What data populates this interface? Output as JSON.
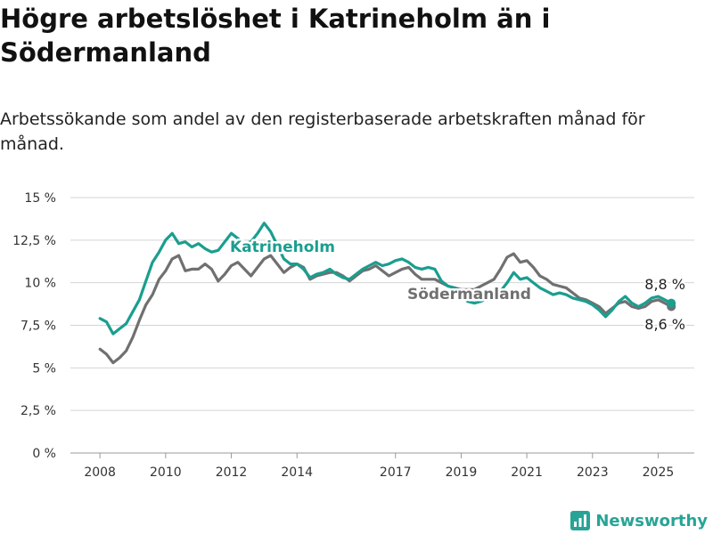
{
  "title": "Högre arbetslöshet i Katrineholm än i Södermanland",
  "subtitle": "Arbetssökande som andel av den registerbaserade arbetskraften månad för månad.",
  "brand": "Newsworthy",
  "colors": {
    "katrineholm": "#1a9e8f",
    "sodermanland": "#707070",
    "grid": "#d4d4d4",
    "brand": "#27a496"
  },
  "chart_data": {
    "type": "line",
    "y_ticks": [
      {
        "value": 0,
        "label": "0 %"
      },
      {
        "value": 2.5,
        "label": "2,5 %"
      },
      {
        "value": 5,
        "label": "5 %"
      },
      {
        "value": 7.5,
        "label": "7,5 %"
      },
      {
        "value": 10,
        "label": "10 %"
      },
      {
        "value": 12.5,
        "label": "12,5 %"
      },
      {
        "value": 15,
        "label": "15 %"
      }
    ],
    "x_ticks": [
      {
        "value": 2008,
        "label": "2008"
      },
      {
        "value": 2010,
        "label": "2010"
      },
      {
        "value": 2012,
        "label": "2012"
      },
      {
        "value": 2014,
        "label": "2014"
      },
      {
        "value": 2017,
        "label": "2017"
      },
      {
        "value": 2019,
        "label": "2019"
      },
      {
        "value": 2021,
        "label": "2021"
      },
      {
        "value": 2023,
        "label": "2023"
      },
      {
        "value": 2025,
        "label": "2025"
      }
    ],
    "ylim": [
      0,
      15
    ],
    "xlim": [
      2007.1,
      2026.1
    ],
    "grid": true,
    "series": [
      {
        "name": "Katrineholm",
        "end_label": "8,8 %",
        "points": [
          [
            2008.0,
            7.9
          ],
          [
            2008.2,
            7.7
          ],
          [
            2008.4,
            7.0
          ],
          [
            2008.6,
            7.3
          ],
          [
            2008.8,
            7.6
          ],
          [
            2009.0,
            8.3
          ],
          [
            2009.2,
            9.0
          ],
          [
            2009.4,
            10.1
          ],
          [
            2009.6,
            11.2
          ],
          [
            2009.8,
            11.8
          ],
          [
            2010.0,
            12.5
          ],
          [
            2010.2,
            12.9
          ],
          [
            2010.4,
            12.3
          ],
          [
            2010.6,
            12.4
          ],
          [
            2010.8,
            12.1
          ],
          [
            2011.0,
            12.3
          ],
          [
            2011.2,
            12.0
          ],
          [
            2011.4,
            11.8
          ],
          [
            2011.6,
            11.9
          ],
          [
            2011.8,
            12.4
          ],
          [
            2012.0,
            12.9
          ],
          [
            2012.2,
            12.6
          ],
          [
            2012.4,
            12.3
          ],
          [
            2012.6,
            12.4
          ],
          [
            2012.8,
            12.9
          ],
          [
            2013.0,
            13.5
          ],
          [
            2013.2,
            13.0
          ],
          [
            2013.4,
            12.2
          ],
          [
            2013.6,
            11.4
          ],
          [
            2013.8,
            11.1
          ],
          [
            2014.0,
            11.1
          ],
          [
            2014.2,
            10.8
          ],
          [
            2014.4,
            10.3
          ],
          [
            2014.6,
            10.5
          ],
          [
            2014.8,
            10.6
          ],
          [
            2015.0,
            10.8
          ],
          [
            2015.2,
            10.5
          ],
          [
            2015.4,
            10.3
          ],
          [
            2015.6,
            10.2
          ],
          [
            2015.8,
            10.5
          ],
          [
            2016.0,
            10.8
          ],
          [
            2016.2,
            11.0
          ],
          [
            2016.4,
            11.2
          ],
          [
            2016.6,
            11.0
          ],
          [
            2016.8,
            11.1
          ],
          [
            2017.0,
            11.3
          ],
          [
            2017.2,
            11.4
          ],
          [
            2017.4,
            11.2
          ],
          [
            2017.6,
            10.9
          ],
          [
            2017.8,
            10.8
          ],
          [
            2018.0,
            10.9
          ],
          [
            2018.2,
            10.8
          ],
          [
            2018.4,
            10.1
          ],
          [
            2018.6,
            9.8
          ],
          [
            2018.8,
            9.7
          ],
          [
            2019.0,
            9.3
          ],
          [
            2019.2,
            8.9
          ],
          [
            2019.4,
            8.8
          ],
          [
            2019.6,
            8.9
          ],
          [
            2019.8,
            9.1
          ],
          [
            2020.0,
            9.3
          ],
          [
            2020.2,
            9.5
          ],
          [
            2020.4,
            10.0
          ],
          [
            2020.6,
            10.6
          ],
          [
            2020.8,
            10.2
          ],
          [
            2021.0,
            10.3
          ],
          [
            2021.2,
            10.0
          ],
          [
            2021.4,
            9.7
          ],
          [
            2021.6,
            9.5
          ],
          [
            2021.8,
            9.3
          ],
          [
            2022.0,
            9.4
          ],
          [
            2022.2,
            9.3
          ],
          [
            2022.4,
            9.1
          ],
          [
            2022.6,
            9.0
          ],
          [
            2022.8,
            8.9
          ],
          [
            2023.0,
            8.7
          ],
          [
            2023.2,
            8.4
          ],
          [
            2023.4,
            8.0
          ],
          [
            2023.6,
            8.4
          ],
          [
            2023.8,
            8.9
          ],
          [
            2024.0,
            9.2
          ],
          [
            2024.2,
            8.8
          ],
          [
            2024.4,
            8.6
          ],
          [
            2024.6,
            8.8
          ],
          [
            2024.8,
            9.1
          ],
          [
            2025.0,
            9.2
          ],
          [
            2025.2,
            9.0
          ],
          [
            2025.4,
            8.8
          ]
        ]
      },
      {
        "name": "Södermanland",
        "end_label": "8,6 %",
        "points": [
          [
            2008.0,
            6.1
          ],
          [
            2008.2,
            5.8
          ],
          [
            2008.4,
            5.3
          ],
          [
            2008.6,
            5.6
          ],
          [
            2008.8,
            6.0
          ],
          [
            2009.0,
            6.8
          ],
          [
            2009.2,
            7.8
          ],
          [
            2009.4,
            8.7
          ],
          [
            2009.6,
            9.3
          ],
          [
            2009.8,
            10.2
          ],
          [
            2010.0,
            10.7
          ],
          [
            2010.2,
            11.4
          ],
          [
            2010.4,
            11.6
          ],
          [
            2010.6,
            10.7
          ],
          [
            2010.8,
            10.8
          ],
          [
            2011.0,
            10.8
          ],
          [
            2011.2,
            11.1
          ],
          [
            2011.4,
            10.8
          ],
          [
            2011.6,
            10.1
          ],
          [
            2011.8,
            10.5
          ],
          [
            2012.0,
            11.0
          ],
          [
            2012.2,
            11.2
          ],
          [
            2012.4,
            10.8
          ],
          [
            2012.6,
            10.4
          ],
          [
            2012.8,
            10.9
          ],
          [
            2013.0,
            11.4
          ],
          [
            2013.2,
            11.6
          ],
          [
            2013.4,
            11.1
          ],
          [
            2013.6,
            10.6
          ],
          [
            2013.8,
            10.9
          ],
          [
            2014.0,
            11.1
          ],
          [
            2014.2,
            10.9
          ],
          [
            2014.4,
            10.2
          ],
          [
            2014.6,
            10.4
          ],
          [
            2014.8,
            10.5
          ],
          [
            2015.0,
            10.6
          ],
          [
            2015.2,
            10.6
          ],
          [
            2015.4,
            10.4
          ],
          [
            2015.6,
            10.1
          ],
          [
            2015.8,
            10.4
          ],
          [
            2016.0,
            10.7
          ],
          [
            2016.2,
            10.8
          ],
          [
            2016.4,
            11.0
          ],
          [
            2016.6,
            10.7
          ],
          [
            2016.8,
            10.4
          ],
          [
            2017.0,
            10.6
          ],
          [
            2017.2,
            10.8
          ],
          [
            2017.4,
            10.9
          ],
          [
            2017.6,
            10.5
          ],
          [
            2017.8,
            10.2
          ],
          [
            2018.0,
            10.2
          ],
          [
            2018.2,
            10.2
          ],
          [
            2018.4,
            10.0
          ],
          [
            2018.6,
            9.8
          ],
          [
            2018.8,
            9.7
          ],
          [
            2019.0,
            9.6
          ],
          [
            2019.2,
            9.6
          ],
          [
            2019.4,
            9.6
          ],
          [
            2019.6,
            9.8
          ],
          [
            2019.8,
            10.0
          ],
          [
            2020.0,
            10.2
          ],
          [
            2020.2,
            10.8
          ],
          [
            2020.4,
            11.5
          ],
          [
            2020.6,
            11.7
          ],
          [
            2020.8,
            11.2
          ],
          [
            2021.0,
            11.3
          ],
          [
            2021.2,
            10.9
          ],
          [
            2021.4,
            10.4
          ],
          [
            2021.6,
            10.2
          ],
          [
            2021.8,
            9.9
          ],
          [
            2022.0,
            9.8
          ],
          [
            2022.2,
            9.7
          ],
          [
            2022.4,
            9.4
          ],
          [
            2022.6,
            9.1
          ],
          [
            2022.8,
            9.0
          ],
          [
            2023.0,
            8.8
          ],
          [
            2023.2,
            8.6
          ],
          [
            2023.4,
            8.2
          ],
          [
            2023.6,
            8.5
          ],
          [
            2023.8,
            8.8
          ],
          [
            2024.0,
            8.9
          ],
          [
            2024.2,
            8.6
          ],
          [
            2024.4,
            8.5
          ],
          [
            2024.6,
            8.6
          ],
          [
            2024.8,
            8.9
          ],
          [
            2025.0,
            9.0
          ],
          [
            2025.2,
            8.8
          ],
          [
            2025.4,
            8.6
          ]
        ]
      }
    ]
  }
}
